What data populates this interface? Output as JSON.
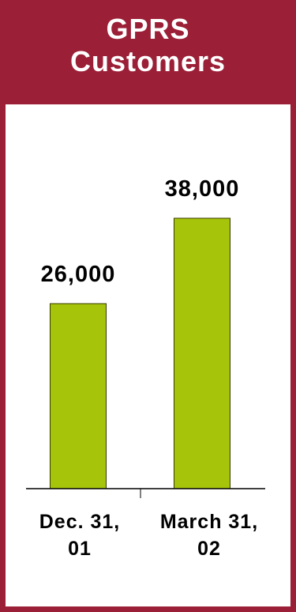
{
  "header": {
    "title_line1": "GPRS",
    "title_line2": "Customers"
  },
  "colors": {
    "frame": "#9b1f36",
    "bar_fill": "#a5c40a",
    "bar_stroke": "#3a3a00",
    "text": "#000000"
  },
  "chart_data": {
    "type": "bar",
    "title": "GPRS Customers",
    "categories": [
      [
        "Dec. 31,",
        "01"
      ],
      [
        "March 31,",
        "02"
      ]
    ],
    "values": [
      26000,
      38000
    ],
    "data_labels": [
      "26,000",
      "38,000"
    ],
    "xlabel": "",
    "ylabel": "",
    "ylim": [
      0,
      38000
    ],
    "grid": false,
    "legend": "none"
  }
}
